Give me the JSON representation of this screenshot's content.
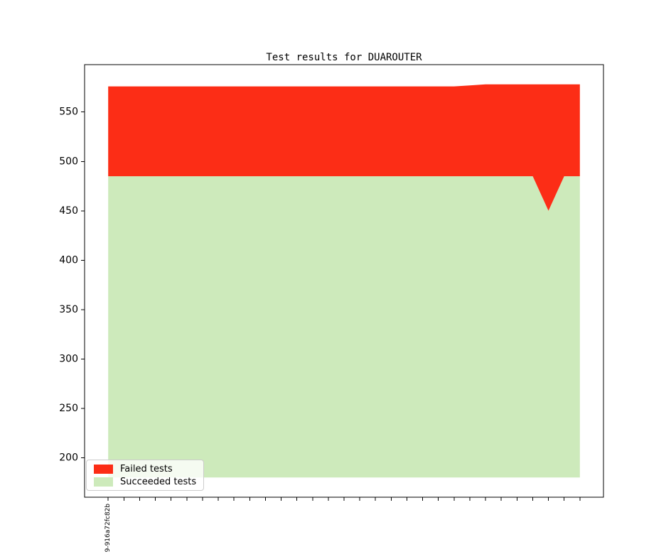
{
  "chart_data": {
    "type": "area",
    "title": "Test results for DUAROUTER",
    "stacked": true,
    "baseline": 180,
    "xlim": [
      -1.5,
      31.5
    ],
    "ylim": [
      160,
      598
    ],
    "y_ticks": [
      200,
      250,
      300,
      350,
      400,
      450,
      500,
      550
    ],
    "x_tick_labels": [
      "9-916a72fc82b",
      "",
      "",
      "",
      "",
      "",
      "",
      "",
      "",
      "",
      "",
      "",
      "",
      "",
      "",
      "",
      "",
      "",
      "",
      "",
      "",
      "",
      "",
      "",
      "",
      "",
      "",
      "",
      "",
      "",
      ""
    ],
    "series": [
      {
        "name": "Failed tests",
        "color": "#fc2d16",
        "values": [
          91,
          91,
          91,
          91,
          91,
          91,
          91,
          91,
          91,
          91,
          91,
          91,
          91,
          91,
          91,
          91,
          91,
          91,
          91,
          91,
          91,
          91,
          91,
          92,
          93,
          93,
          93,
          93,
          128,
          93,
          93
        ]
      },
      {
        "name": "Succeeded tests",
        "color": "#cdeabb",
        "values": [
          485,
          485,
          485,
          485,
          485,
          485,
          485,
          485,
          485,
          485,
          485,
          485,
          485,
          485,
          485,
          485,
          485,
          485,
          485,
          485,
          485,
          485,
          485,
          485,
          485,
          485,
          485,
          485,
          450,
          485,
          485
        ]
      }
    ],
    "legend": {
      "position": "lower left",
      "entries": [
        "Failed tests",
        "Succeeded tests"
      ]
    },
    "axis_color": "#000000",
    "grid": false
  }
}
